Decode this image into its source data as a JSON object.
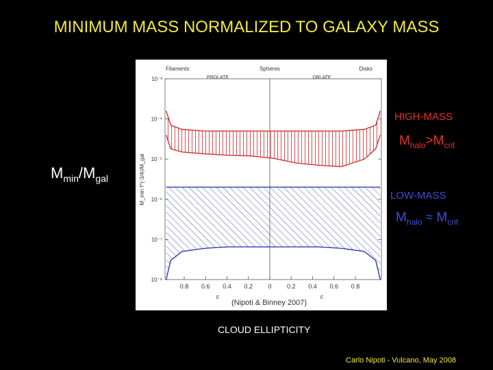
{
  "slide": {
    "title": "MINIMUM MASS NORMALIZED TO GALAXY MASS",
    "y_label_main": "M",
    "y_label_sub1": "min",
    "y_label_mid": "/M",
    "y_label_sub2": "gal",
    "x_label": "CLOUD ELLIPTICITY",
    "high_mass": {
      "label": "HIGH-MASS",
      "m": "M",
      "sub1": "halo",
      "rel": ">M",
      "sub2": "crit"
    },
    "low_mass": {
      "label": "LOW-MASS",
      "m": "M",
      "sub1": "halo",
      "rel": " ≈ M",
      "sub2": "crit"
    },
    "citation": "(Nipoti & Binney 2007)",
    "credit": "Carlo Nipoti  -  Vulcano, May 2008"
  },
  "figure": {
    "top_labels": {
      "filaments": "Filaments",
      "spheres": "Spheres",
      "disks": "Disks"
    },
    "region_labels": {
      "prolate": "PROLATE",
      "oblate": "OBLATE"
    },
    "y_axis_title": "M_min f^(-3/4)/M_gal",
    "x_axis_symbol_left": "ε",
    "x_axis_symbol_right": "ε",
    "colors": {
      "high": "#d42020",
      "low": "#1f2aa8",
      "title": "#f2ea3a"
    }
  },
  "chart_data": {
    "type": "area",
    "x_ticks": [
      "0.8",
      "0.6",
      "0.4",
      "0.2",
      "0",
      "0.2",
      "0.4",
      "0.6",
      "0.8"
    ],
    "y_ticks": [
      "10⁻³",
      "10⁻⁴",
      "10⁻⁵",
      "10⁻⁶",
      "10⁻⁷",
      "10⁻⁸"
    ],
    "y_scale": "log",
    "ylim": [
      1e-08,
      0.001
    ],
    "xlim": [
      -0.95,
      0.95
    ],
    "series": [
      {
        "name": "HIGH-MASS",
        "x": [
          -0.94,
          -0.9,
          -0.8,
          -0.6,
          -0.4,
          -0.2,
          0.0,
          0.2,
          0.4,
          0.6,
          0.8,
          0.9,
          0.94
        ],
        "upper": [
          0.00016,
          7e-05,
          5.5e-05,
          5e-05,
          5e-05,
          5e-05,
          5e-05,
          5e-05,
          5e-05,
          5e-05,
          5.5e-05,
          7e-05,
          0.00016
        ],
        "lower": [
          4e-05,
          1.8e-05,
          1.5e-05,
          1.35e-05,
          1.25e-05,
          1.2e-05,
          1.05e-05,
          8e-06,
          7e-06,
          6.5e-06,
          1e-05,
          1.8e-05,
          4e-05
        ]
      },
      {
        "name": "LOW-MASS",
        "x": [
          -0.94,
          -0.9,
          -0.8,
          -0.6,
          -0.4,
          -0.2,
          0.0,
          0.2,
          0.4,
          0.6,
          0.8,
          0.9,
          0.94
        ],
        "upper": [
          2e-06,
          2e-06,
          2e-06,
          2e-06,
          2e-06,
          2e-06,
          2e-06,
          2e-06,
          2e-06,
          2e-06,
          2e-06,
          2e-06,
          2e-06
        ],
        "lower": [
          1e-08,
          3e-08,
          5e-08,
          6e-08,
          6.5e-08,
          6.5e-08,
          6.5e-08,
          6.5e-08,
          6.5e-08,
          6e-08,
          5e-08,
          3e-08,
          1e-08
        ]
      }
    ]
  }
}
